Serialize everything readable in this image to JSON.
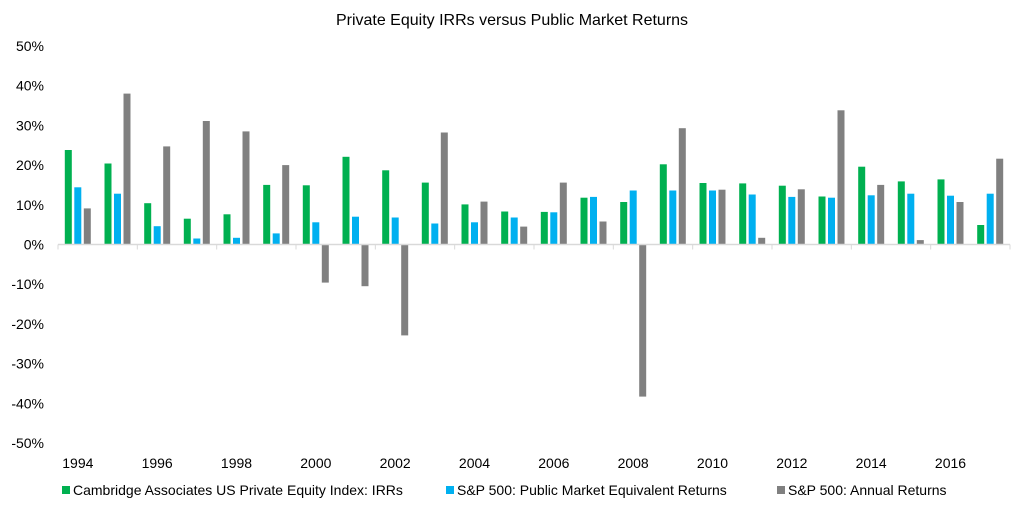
{
  "chart_data": {
    "type": "bar",
    "title": "Private Equity IRRs versus Public Market Returns",
    "xlabel": "",
    "ylabel": "",
    "categories": [
      "1994",
      "1995",
      "1996",
      "1997",
      "1998",
      "1999",
      "2000",
      "2001",
      "2002",
      "2003",
      "2004",
      "2005",
      "2006",
      "2007",
      "2008",
      "2009",
      "2010",
      "2011",
      "2012",
      "2013",
      "2014",
      "2015",
      "2016",
      "2017"
    ],
    "x_tick_labels": [
      "1994",
      "1996",
      "1998",
      "2000",
      "2002",
      "2004",
      "2006",
      "2008",
      "2010",
      "2012",
      "2014",
      "2016"
    ],
    "y_tick_labels": [
      "50%",
      "40%",
      "30%",
      "20%",
      "10%",
      "0%",
      "-10%",
      "-20%",
      "-30%",
      "-40%",
      "-50%"
    ],
    "ylim": [
      -50,
      50
    ],
    "grid": false,
    "legend_position": "bottom",
    "series": [
      {
        "name": "Cambridge Associates US Private Equity Index: IRRs",
        "color": "#00B050",
        "values": [
          23.8,
          20.4,
          10.4,
          6.5,
          7.6,
          15.0,
          14.9,
          22.1,
          18.7,
          15.6,
          10.1,
          8.3,
          8.2,
          11.8,
          10.7,
          20.2,
          15.5,
          15.4,
          14.8,
          12.1,
          19.6,
          15.9,
          16.4,
          4.9
        ]
      },
      {
        "name": "S&P 500: Public Market Equivalent Returns",
        "color": "#00B0F0",
        "values": [
          14.4,
          12.8,
          4.6,
          1.5,
          1.7,
          2.8,
          5.6,
          7.0,
          6.8,
          5.3,
          5.6,
          6.8,
          8.1,
          12.0,
          13.6,
          13.6,
          13.6,
          12.6,
          12.0,
          11.8,
          12.4,
          12.8,
          12.3,
          12.8
        ]
      },
      {
        "name": "S&P 500: Annual Returns",
        "color": "#808080",
        "values": [
          9.1,
          38.0,
          24.7,
          31.1,
          28.5,
          20.0,
          -9.6,
          -10.5,
          -22.9,
          28.2,
          10.8,
          4.5,
          15.6,
          5.8,
          -38.3,
          29.3,
          13.8,
          1.7,
          13.9,
          33.8,
          15.0,
          1.1,
          10.7,
          21.6
        ]
      }
    ]
  }
}
